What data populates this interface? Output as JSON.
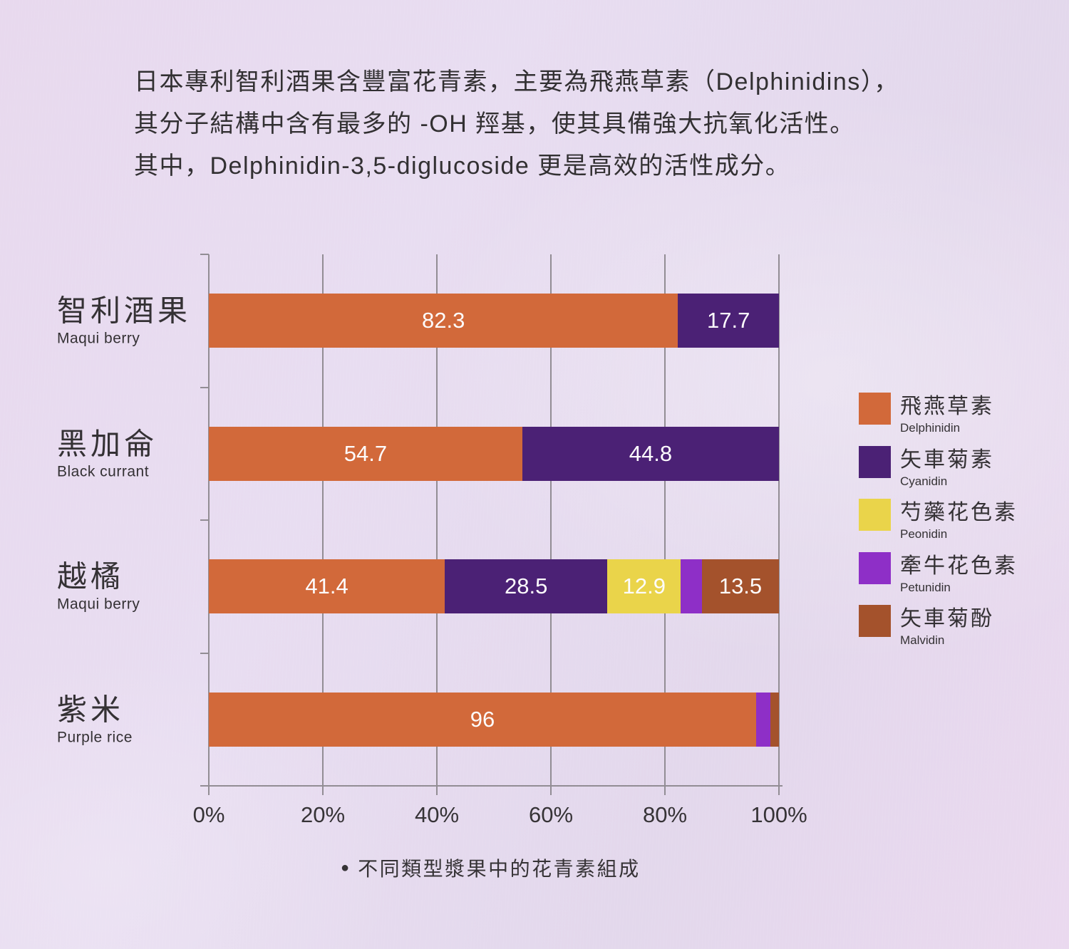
{
  "page": {
    "background_color": "#e7dcef",
    "intro_lines": [
      "日本專利智利酒果含豐富花青素，主要為飛燕草素（Delphinidins），",
      "其分子結構中含有最多的 -OH 羥基，使其具備強大抗氧化活性。",
      "其中，Delphinidin-3,5-diglucoside 更是高效的活性成分。"
    ],
    "caption": {
      "bullet": "●",
      "text": "不同類型漿果中的花青素組成"
    }
  },
  "chart_data": {
    "type": "bar",
    "orientation": "horizontal",
    "stacked": true,
    "unit": "%",
    "xlim": [
      0,
      100
    ],
    "x_ticks": [
      "0%",
      "20%",
      "40%",
      "60%",
      "80%",
      "100%"
    ],
    "grid": "vertical",
    "legend_position": "right",
    "categories": [
      {
        "zh": "智利酒果",
        "en": "Maqui berry"
      },
      {
        "zh": "黑加侖",
        "en": "Black currant"
      },
      {
        "zh": "越橘",
        "en": "Maqui berry"
      },
      {
        "zh": "紫米",
        "en": "Purple rice"
      }
    ],
    "series": [
      {
        "zh": "飛燕草素",
        "en": "Delphinidin",
        "color": "#d2693a",
        "values": [
          82.3,
          54.7,
          41.4,
          96
        ]
      },
      {
        "zh": "矢車菊素",
        "en": "Cyanidin",
        "color": "#4b2175",
        "values": [
          17.7,
          44.8,
          28.5,
          0
        ]
      },
      {
        "zh": "芍藥花色素",
        "en": "Peonidin",
        "color": "#ead44a",
        "values": [
          0,
          0,
          12.9,
          0
        ]
      },
      {
        "zh": "牽牛花色素",
        "en": "Petunidin",
        "color": "#8e2fc7",
        "values": [
          0,
          0,
          3.7,
          2.5
        ]
      },
      {
        "zh": "矢車菊酚",
        "en": "Malvidin",
        "color": "#a4522c",
        "values": [
          0,
          0,
          13.5,
          1.5
        ]
      }
    ],
    "value_label_min": 5,
    "colors": {
      "grid": "#928d94",
      "bar_label": "#ffffff",
      "text": "#343134"
    }
  }
}
